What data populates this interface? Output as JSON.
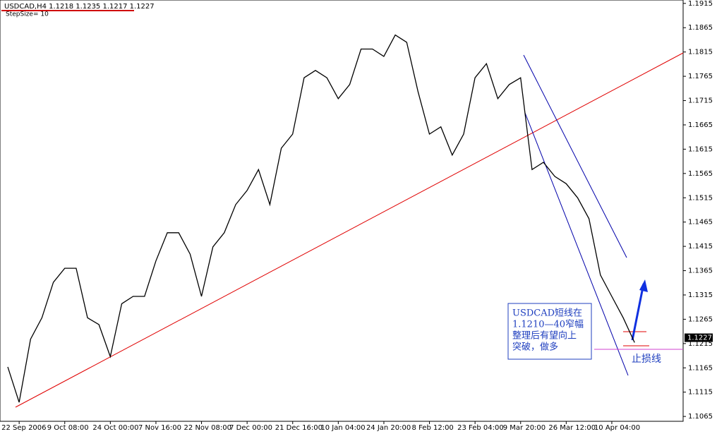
{
  "chart_data": {
    "type": "line",
    "header": "USDCAD,H4  1.1218 1.1235 1.1217 1.1227",
    "subheader": "StepSize= 10",
    "categories": [
      null,
      "22 Sep 2006",
      null,
      null,
      null,
      "9 Oct 08:00",
      null,
      null,
      null,
      "24 Oct 00:00",
      null,
      null,
      null,
      "7 Nov 16:00",
      null,
      null,
      null,
      "22 Nov 08:00",
      null,
      null,
      null,
      "7 Dec 00:00",
      null,
      null,
      null,
      "21 Dec 16:00",
      null,
      null,
      null,
      "10 Jan 04:00",
      null,
      null,
      null,
      "24 Jan 20:00",
      null,
      null,
      null,
      "8 Feb 12:00",
      null,
      null,
      null,
      "23 Feb 04:00",
      null,
      null,
      null,
      "9 Mar 20:00",
      null,
      null,
      null,
      "26 Mar 12:00",
      null,
      null,
      null,
      "10 Apr 04:00",
      null,
      null
    ],
    "values": [
      1.1167,
      1.1094,
      1.1224,
      1.1268,
      1.1341,
      1.137,
      1.137,
      1.1268,
      1.1254,
      1.1188,
      1.1297,
      1.1312,
      1.1312,
      1.1385,
      1.1443,
      1.1443,
      1.1399,
      1.1312,
      1.1414,
      1.1443,
      1.1501,
      1.153,
      1.1573,
      1.1501,
      1.1617,
      1.1646,
      1.1762,
      1.1777,
      1.1762,
      1.1719,
      1.1748,
      1.1821,
      1.1821,
      1.1806,
      1.185,
      1.1835,
      1.1733,
      1.1646,
      1.1661,
      1.1603,
      1.1646,
      1.1762,
      1.1791,
      1.1719,
      1.1748,
      1.1762,
      1.1573,
      1.1588,
      1.1559,
      1.1544,
      1.1515,
      1.1472,
      1.1356,
      1.1312,
      1.1268,
      1.1217
    ],
    "color": "#000000",
    "ylim": [
      1.1055,
      1.1922
    ],
    "yticks": [
      1.1065,
      1.1115,
      1.1165,
      1.1215,
      1.1265,
      1.1315,
      1.1365,
      1.1415,
      1.1465,
      1.1515,
      1.1565,
      1.1615,
      1.1665,
      1.1715,
      1.1765,
      1.1815,
      1.1865,
      1.1915
    ],
    "last_price": 1.1227,
    "annotation": [
      "USDCAD短线在",
      "1.1210—40窄幅",
      "整理后有望向上",
      "突破，做多"
    ],
    "stop_label": "止损线"
  }
}
